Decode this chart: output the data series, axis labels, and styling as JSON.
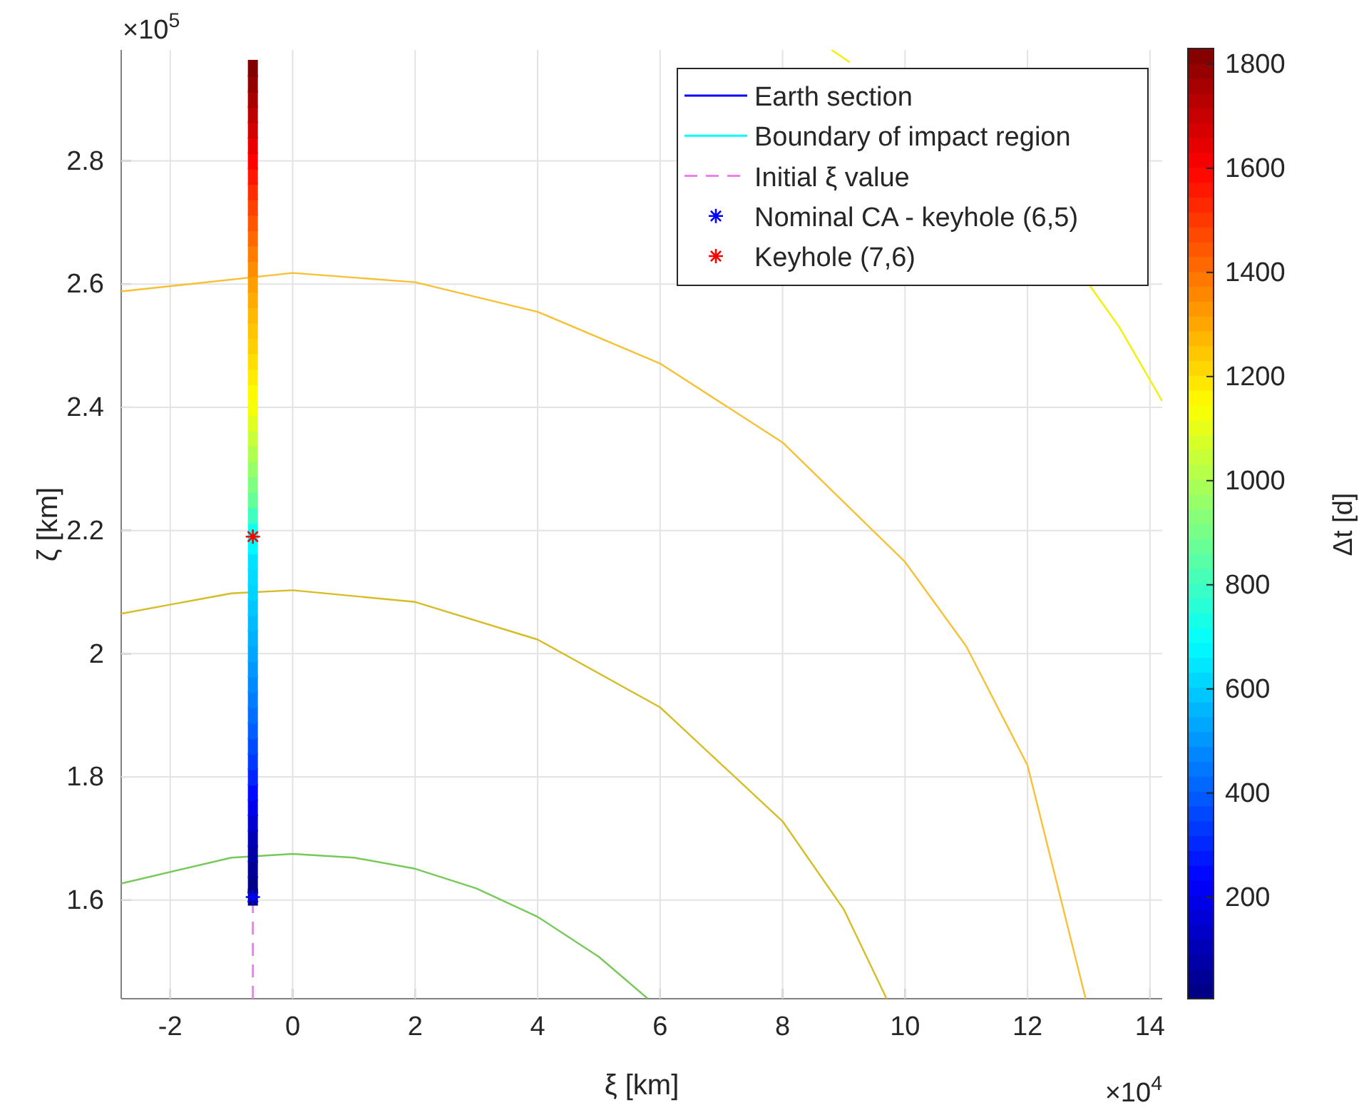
{
  "chart_data": {
    "type": "line",
    "xlabel": "ξ [km]",
    "ylabel": "ζ [km]",
    "clabel": "Δt [d]",
    "annotations": [
      "×10$^{5}$",
      "×10$^{4}$"
    ],
    "xlim": [
      -2.8,
      14.2
    ],
    "ylim": [
      1.44,
      2.98
    ],
    "xticks": [
      -2,
      0,
      2,
      4,
      6,
      8,
      10,
      12,
      14
    ],
    "yticks": [
      1.6,
      1.8,
      2,
      2.2,
      2.4,
      2.6,
      2.8
    ],
    "clim": [
      5,
      1830
    ],
    "cticks": [
      200,
      400,
      600,
      800,
      1000,
      1200,
      1400,
      1600,
      1800
    ],
    "grid": true,
    "legend": "top right",
    "series": [
      {
        "name": "Earth section",
        "color": "#0000ff"
      },
      {
        "name": "Boundary of impact region",
        "color": "#00ffff"
      },
      {
        "color": "#77c95a",
        "x": [
          -2.8,
          -1,
          0,
          1,
          2,
          3,
          4,
          5,
          5.8
        ],
        "values": [
          1.627,
          1.669,
          1.675,
          1.669,
          1.651,
          1.619,
          1.573,
          1.508,
          1.44
        ]
      },
      {
        "color": "#d6bd26",
        "x": [
          -2.8,
          -1,
          0,
          2,
          4,
          6,
          8,
          9,
          9.7
        ],
        "values": [
          2.065,
          2.098,
          2.103,
          2.084,
          2.023,
          1.913,
          1.728,
          1.585,
          1.44
        ]
      },
      {
        "color": "#f7c035",
        "x": [
          -2.8,
          0,
          2,
          4,
          6,
          8,
          10,
          11,
          12,
          12.95
        ],
        "values": [
          2.588,
          2.618,
          2.603,
          2.555,
          2.471,
          2.343,
          2.149,
          2.012,
          1.819,
          1.44
        ]
      },
      {
        "color": "#f2f200",
        "x": [
          8.8,
          9.1,
          10,
          11,
          12,
          13,
          13.5,
          14.2
        ],
        "values": [
          2.98,
          2.96,
          null,
          null,
          null,
          2.6,
          2.53,
          2.41
        ]
      },
      {
        "name": "Initial ξ value",
        "line_style": "dashed",
        "color": "#f080f0",
        "x": [
          -0.65,
          -0.65
        ],
        "values": [
          1.44,
          1.595
        ]
      },
      {
        "type": "scatter",
        "marker": "square",
        "x": [
          -0.65,
          -0.65,
          -0.65,
          -0.65,
          -0.65,
          -0.65,
          -0.65,
          -0.65,
          -0.65,
          -0.65,
          -0.65,
          -0.65,
          -0.65,
          -0.65,
          -0.65,
          -0.65,
          -0.65,
          -0.65,
          -0.65,
          -0.65,
          -0.65,
          -0.65,
          -0.65,
          -0.65,
          -0.65,
          -0.65,
          -0.65,
          -0.65,
          -0.65,
          -0.65,
          -0.65,
          -0.65,
          -0.65,
          -0.65,
          -0.65,
          -0.65,
          -0.65,
          -0.65,
          -0.65,
          -0.65,
          -0.65,
          -0.65,
          -0.65,
          -0.65,
          -0.65,
          -0.65,
          -0.65,
          -0.65,
          -0.65,
          -0.65,
          -0.65,
          -0.65,
          -0.65,
          -0.65,
          -0.65
        ],
        "values": [
          1.605,
          1.625,
          1.65,
          1.675,
          1.7,
          1.725,
          1.75,
          1.775,
          1.8,
          1.825,
          1.85,
          1.875,
          1.9,
          1.925,
          1.95,
          1.975,
          2,
          2.025,
          2.05,
          2.075,
          2.1,
          2.125,
          2.15,
          2.175,
          2.2,
          2.225,
          2.25,
          2.275,
          2.3,
          2.325,
          2.35,
          2.375,
          2.4,
          2.425,
          2.45,
          2.475,
          2.5,
          2.525,
          2.55,
          2.575,
          2.6,
          2.625,
          2.65,
          2.675,
          2.7,
          2.725,
          2.75,
          2.775,
          2.8,
          2.825,
          2.85,
          2.875,
          2.9,
          2.925,
          2.95
        ],
        "colors": [
          "#000080",
          "#000088",
          "#000096",
          "#0000a4",
          "#0000b5",
          "#0000d1",
          "#0000ec",
          "#0009ff",
          "#0025ff",
          "#0039ff",
          "#004aff",
          "#005dff",
          "#006eff",
          "#007cff",
          "#008aff",
          "#0098ff",
          "#00a6ff",
          "#00b1ff",
          "#00bcff",
          "#00c7ff",
          "#00d3ff",
          "#00dbff",
          "#00e3ff",
          "#00faff",
          "#11ffee",
          "#3effc1",
          "#65ff9a",
          "#7eff81",
          "#97ff68",
          "#b0ff4f",
          "#c9ff36",
          "#e0ff1f",
          "#f6ff09",
          "#fffa00",
          "#ffec00",
          "#ffde00",
          "#ffd000",
          "#ffc500",
          "#ffb900",
          "#ffac00",
          "#ff9e00",
          "#ff8d00",
          "#ff7c00",
          "#ff6900",
          "#ff5500",
          "#ff4100",
          "#ff2e00",
          "#ff1700",
          "#ff0100",
          "#ea0000",
          "#d30000",
          "#bd0000",
          "#a70000",
          "#930000",
          "#800000"
        ]
      },
      {
        "name": "Nominal CA - keyhole (6,5)",
        "type": "scatter",
        "marker": "cross",
        "color": "#0000ff",
        "x": [
          -0.65
        ],
        "values": [
          1.605
        ]
      },
      {
        "name": "Keyhole (7,6)",
        "type": "scatter",
        "marker": "cross",
        "color": "#ff0000",
        "x": [
          -0.65
        ],
        "values": [
          2.19
        ]
      }
    ]
  }
}
